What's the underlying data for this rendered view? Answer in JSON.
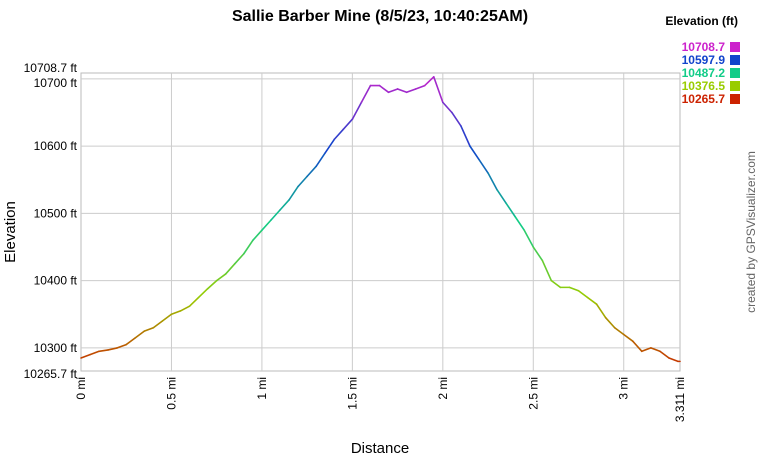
{
  "chart_data": {
    "type": "line",
    "title": "Sallie Barber Mine (8/5/23, 10:40:25AM)",
    "xlabel": "Distance",
    "ylabel": "Elevation",
    "credit": "created by GPSVisualizer.com",
    "xlim": [
      0,
      3.311
    ],
    "ylim": [
      10265.7,
      10708.7
    ],
    "x_ticks": [
      {
        "value": 0,
        "label": "0 mi"
      },
      {
        "value": 0.5,
        "label": "0.5 mi"
      },
      {
        "value": 1,
        "label": "1 mi"
      },
      {
        "value": 1.5,
        "label": "1.5 mi"
      },
      {
        "value": 2,
        "label": "2 mi"
      },
      {
        "value": 2.5,
        "label": "2.5 mi"
      },
      {
        "value": 3,
        "label": "3 mi"
      },
      {
        "value": 3.311,
        "label": "3.311 mi"
      }
    ],
    "y_ticks": [
      {
        "value": 10265.7,
        "label": "10265.7 ft"
      },
      {
        "value": 10300,
        "label": "10300 ft"
      },
      {
        "value": 10400,
        "label": "10400 ft"
      },
      {
        "value": 10500,
        "label": "10500 ft"
      },
      {
        "value": 10600,
        "label": "10600 ft"
      },
      {
        "value": 10700,
        "label": "10700 ft"
      },
      {
        "value": 10708.7,
        "label": "10708.7 ft"
      }
    ],
    "legend": {
      "title": "Elevation (ft)",
      "placement": "top-right",
      "entries": [
        {
          "label": "10708.7",
          "color": "#cc22cc"
        },
        {
          "label": "10597.9",
          "color": "#1144cc"
        },
        {
          "label": "10487.2",
          "color": "#11cc88"
        },
        {
          "label": "10376.5",
          "color": "#99cc00"
        },
        {
          "label": "10265.7",
          "color": "#cc2200"
        }
      ]
    },
    "grid": true,
    "series": [
      {
        "x": [
          0,
          0.05,
          0.1,
          0.15,
          0.2,
          0.25,
          0.3,
          0.35,
          0.4,
          0.45,
          0.5,
          0.55,
          0.6,
          0.65,
          0.7,
          0.75,
          0.8,
          0.85,
          0.9,
          0.95,
          1.0,
          1.05,
          1.1,
          1.15,
          1.2,
          1.25,
          1.3,
          1.35,
          1.4,
          1.45,
          1.5,
          1.55,
          1.6,
          1.65,
          1.7,
          1.75,
          1.8,
          1.85,
          1.9,
          1.95,
          2.0,
          2.05,
          2.1,
          2.15,
          2.2,
          2.25,
          2.3,
          2.35,
          2.4,
          2.45,
          2.5,
          2.55,
          2.6,
          2.65,
          2.7,
          2.75,
          2.8,
          2.85,
          2.9,
          2.95,
          3.0,
          3.05,
          3.1,
          3.15,
          3.2,
          3.25,
          3.3,
          3.311
        ],
        "values": [
          10285,
          10290,
          10295,
          10297,
          10300,
          10305,
          10315,
          10325,
          10330,
          10340,
          10350,
          10355,
          10362,
          10375,
          10388,
          10400,
          10410,
          10425,
          10440,
          10460,
          10475,
          10490,
          10505,
          10520,
          10540,
          10555,
          10570,
          10590,
          10610,
          10625,
          10640,
          10665,
          10690,
          10690,
          10680,
          10685,
          10680,
          10685,
          10690,
          10703,
          10665,
          10650,
          10630,
          10600,
          10580,
          10560,
          10535,
          10515,
          10495,
          10475,
          10450,
          10430,
          10400,
          10390,
          10390,
          10385,
          10375,
          10365,
          10345,
          10330,
          10320,
          10310,
          10295,
          10300,
          10295,
          10285,
          10280,
          10280
        ]
      }
    ]
  }
}
